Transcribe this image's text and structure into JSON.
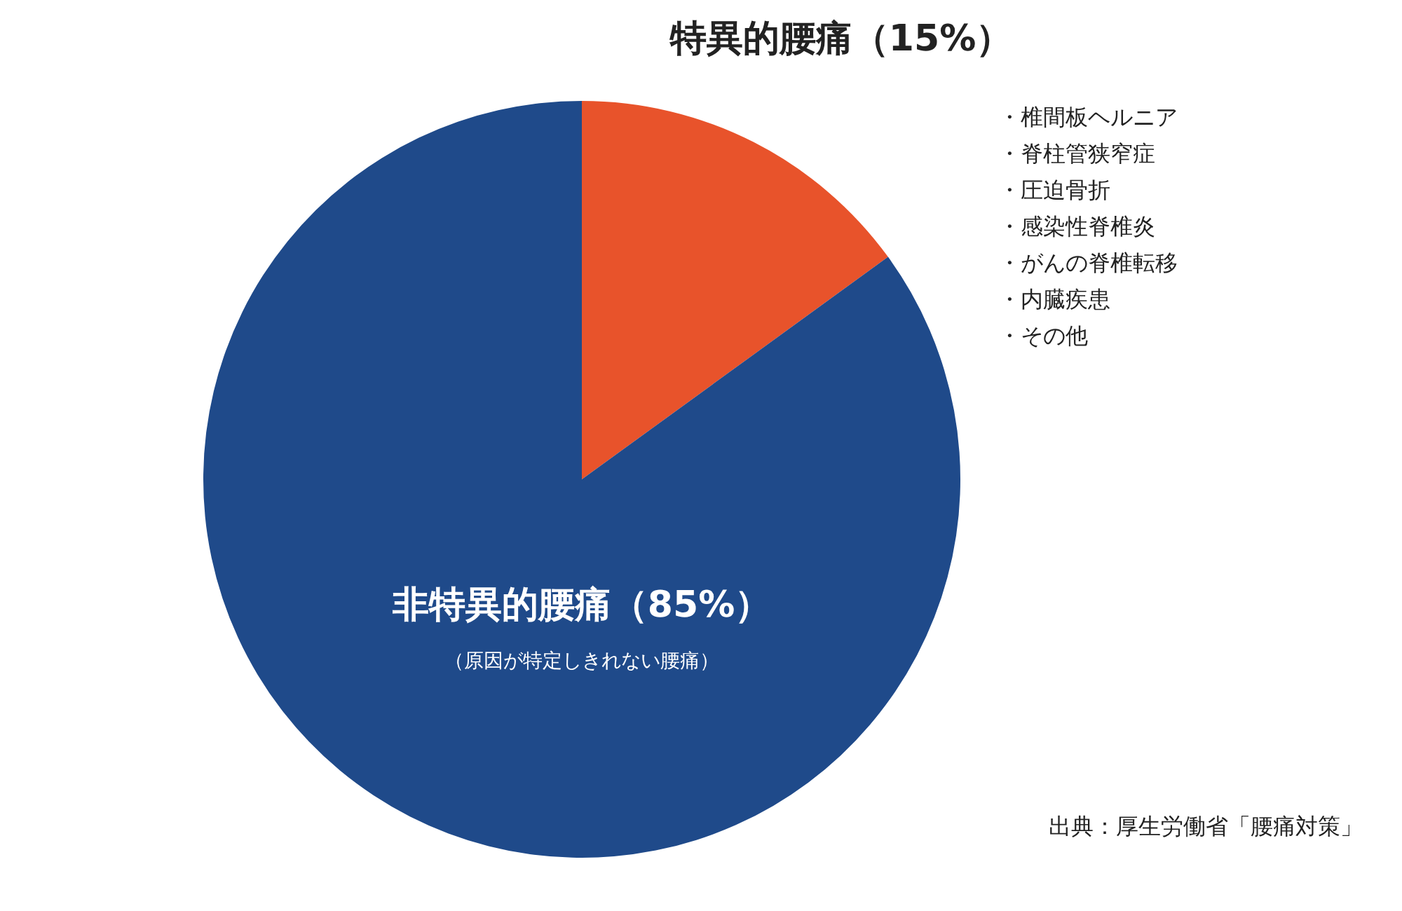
{
  "chart_data": {
    "type": "pie",
    "categories": [
      "特異的腰痛（15%）",
      "非特異的腰痛（85%）"
    ],
    "values": [
      15,
      85
    ],
    "colors": [
      "#e8532b",
      "#1f4a8a"
    ],
    "annotations": [
      "・椎間板ヘルニア",
      "・脊柱管狭窄症",
      "・圧迫骨折",
      "・感染性脊椎炎",
      "・がんの脊椎転移",
      "・内臓疾患",
      "・その他",
      "（原因が特定しきれない腰痛）",
      "出典：厚生労働省「腰痛対策」"
    ]
  }
}
